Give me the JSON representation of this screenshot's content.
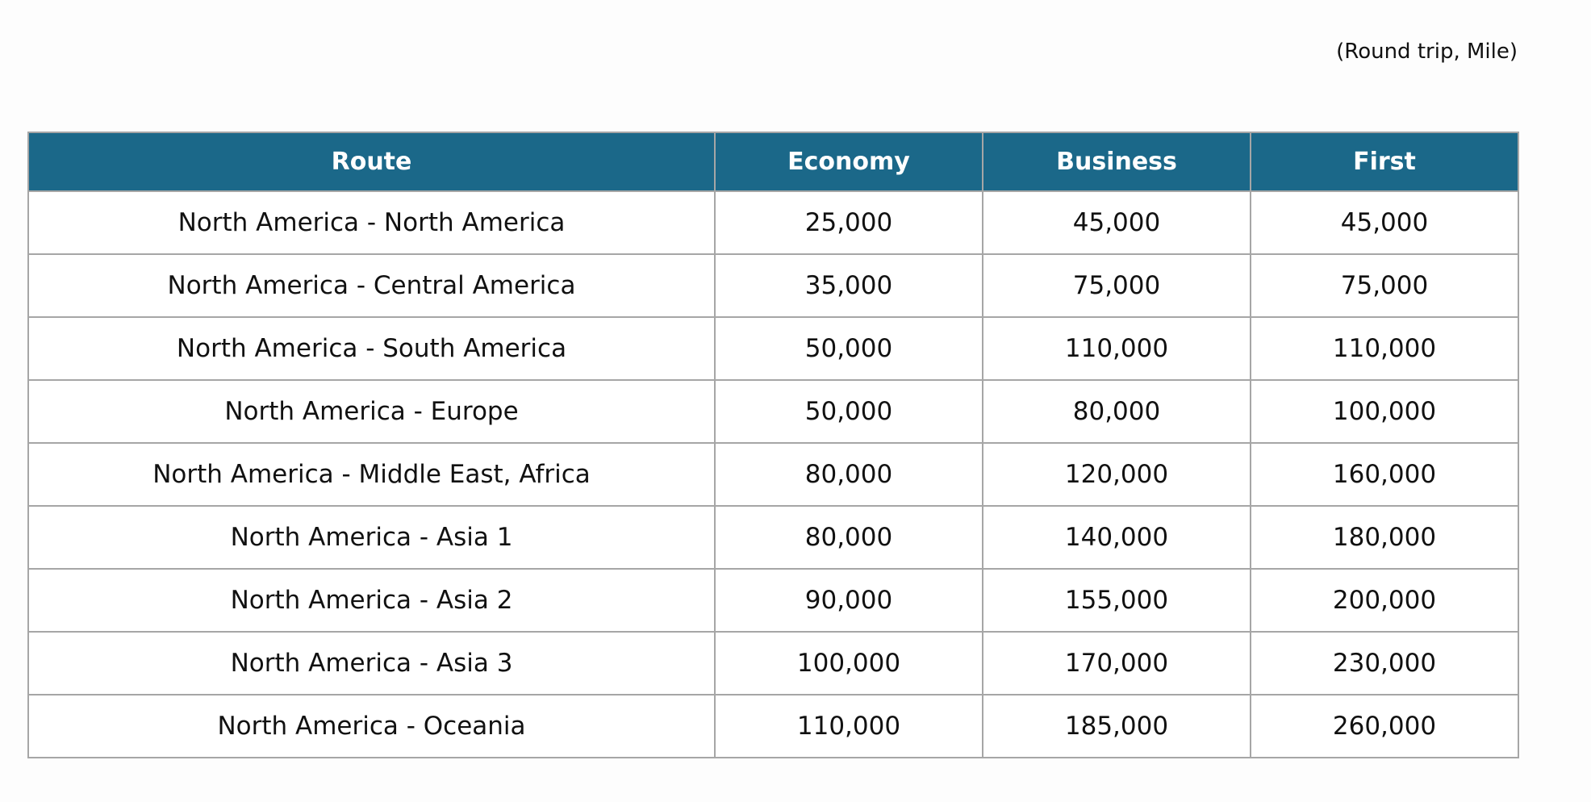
{
  "note": "(Round trip, Mile)",
  "table": {
    "headers": [
      "Route",
      "Economy",
      "Business",
      "First"
    ],
    "rows": [
      [
        "North America - North America",
        "25,000",
        "45,000",
        "45,000"
      ],
      [
        "North America - Central America",
        "35,000",
        "75,000",
        "75,000"
      ],
      [
        "North America - South America",
        "50,000",
        "110,000",
        "110,000"
      ],
      [
        "North America - Europe",
        "50,000",
        "80,000",
        "100,000"
      ],
      [
        "North America - Middle East, Africa",
        "80,000",
        "120,000",
        "160,000"
      ],
      [
        "North America - Asia 1",
        "80,000",
        "140,000",
        "180,000"
      ],
      [
        "North America - Asia 2",
        "90,000",
        "155,000",
        "200,000"
      ],
      [
        "North America - Asia 3",
        "100,000",
        "170,000",
        "230,000"
      ],
      [
        "North America - Oceania",
        "110,000",
        "185,000",
        "260,000"
      ]
    ]
  },
  "colors": {
    "header_bg": "#1b6889",
    "header_text": "#ffffff",
    "border": "#a6a6a6"
  }
}
